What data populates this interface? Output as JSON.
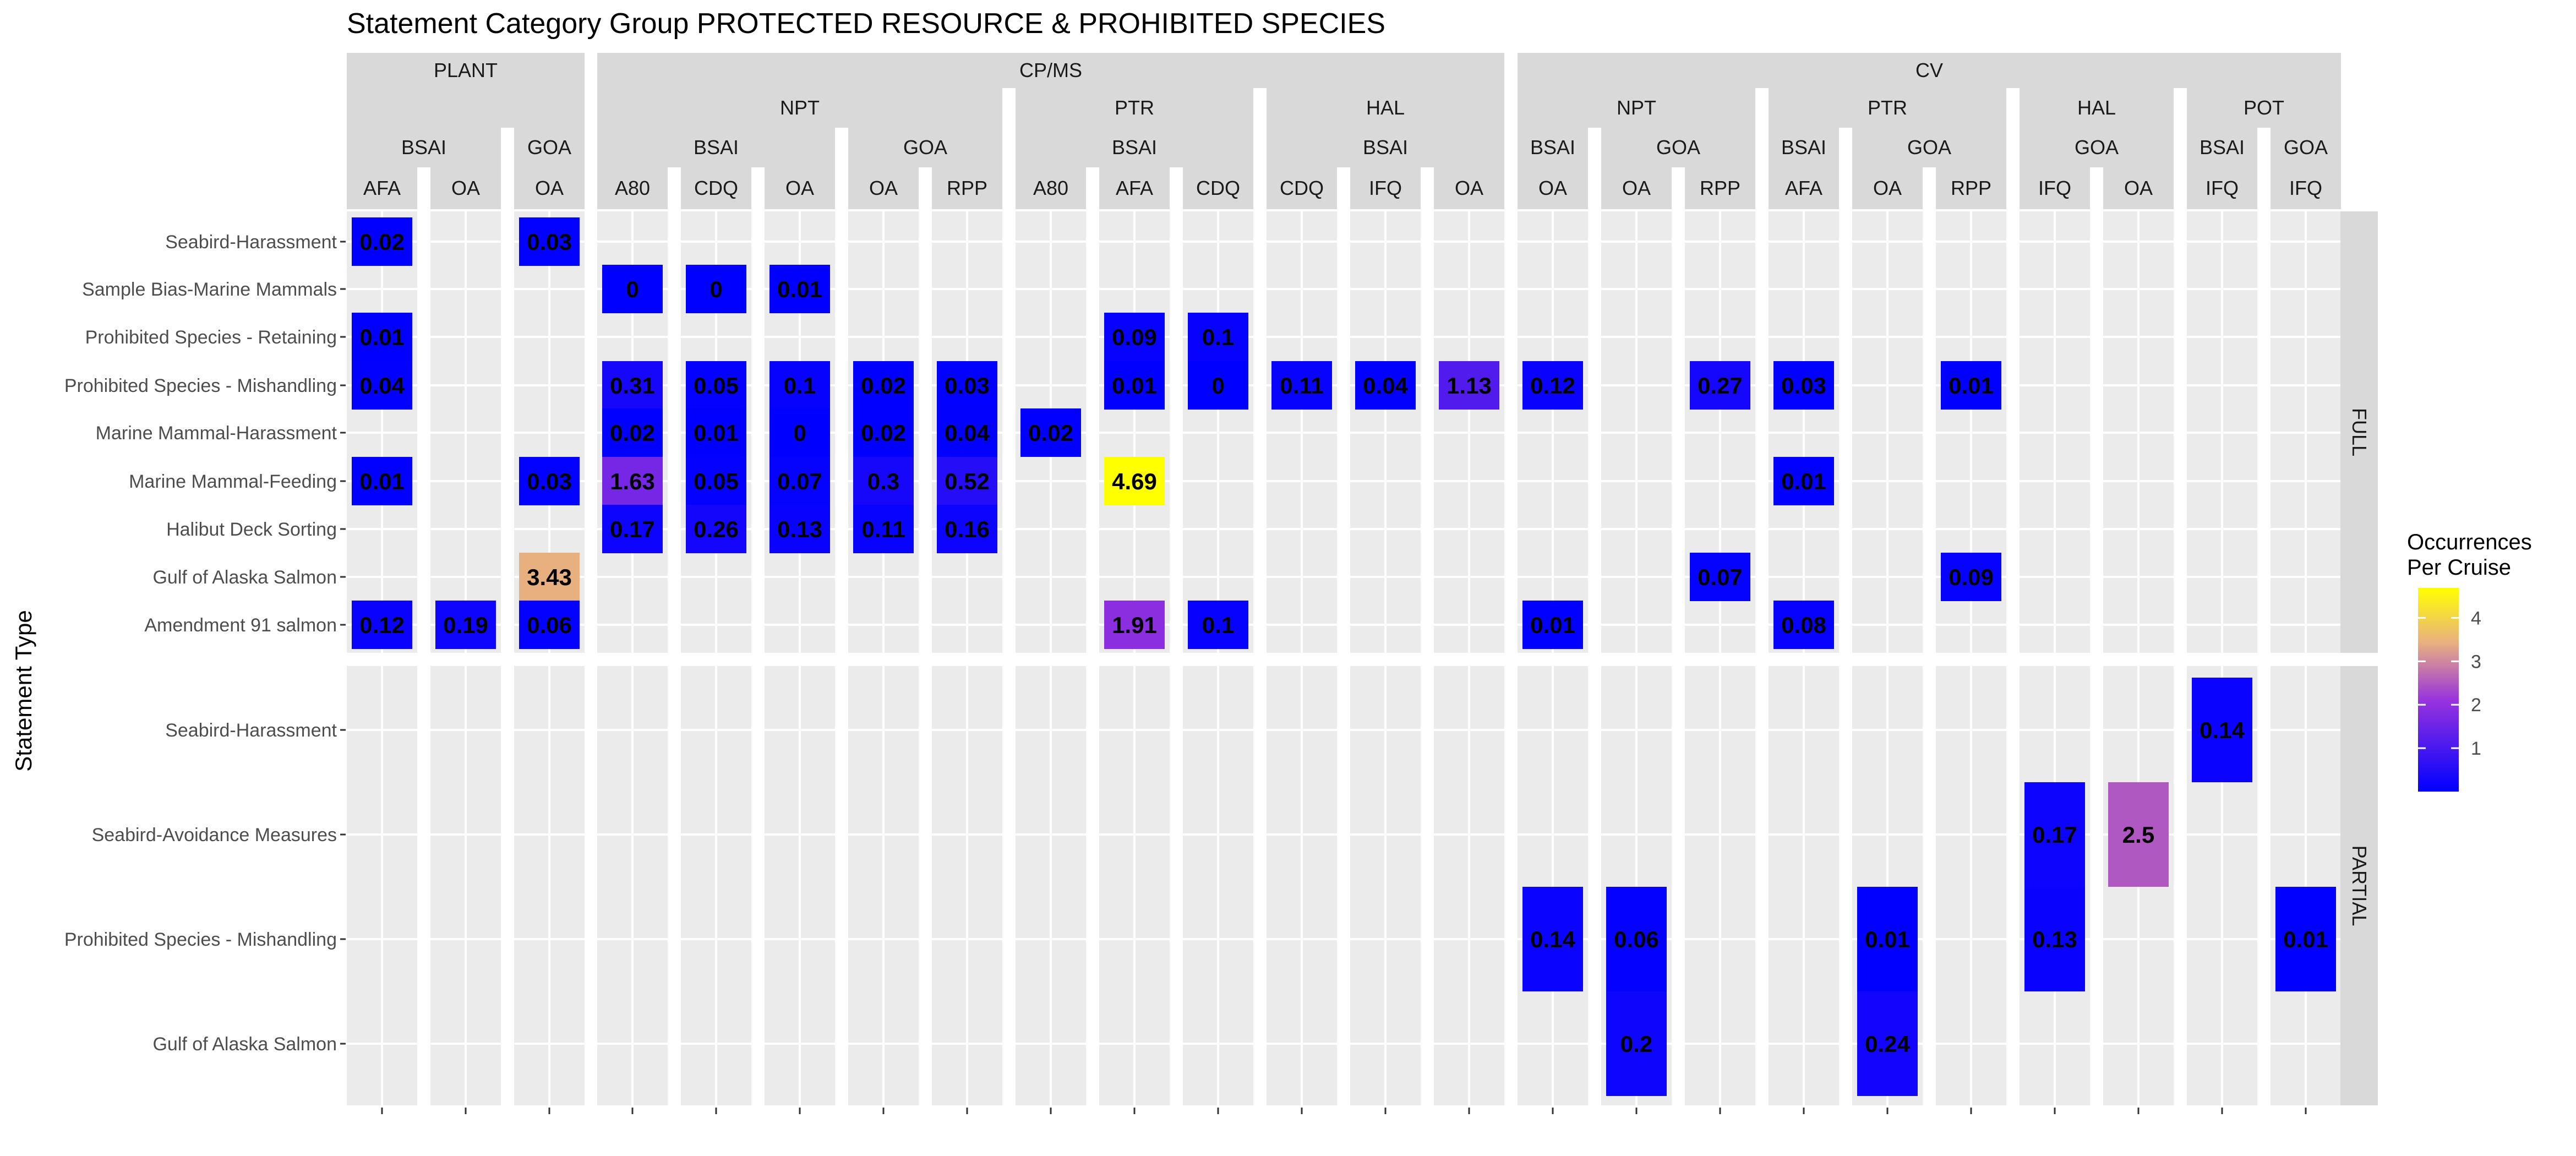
{
  "chart_data": {
    "type": "heatmap",
    "title": "Statement Category Group PROTECTED RESOURCE & PROHIBITED SPECIES",
    "ylabel": "Statement Type",
    "legend": {
      "title_line1": "Occurrences",
      "title_line2": "Per Cruise",
      "ticks": [
        1,
        2,
        3,
        4
      ],
      "range": [
        0,
        4.69
      ],
      "colors": [
        "#0000ff",
        "#9933dd",
        "#e8b080",
        "#ffff00"
      ],
      "placement": "right"
    },
    "columns": [
      {
        "l1": "PLANT",
        "l2": "",
        "l3": "BSAI",
        "l4": "AFA"
      },
      {
        "l1": "PLANT",
        "l2": "",
        "l3": "BSAI",
        "l4": "OA"
      },
      {
        "l1": "PLANT",
        "l2": "",
        "l3": "GOA",
        "l4": "OA"
      },
      {
        "l1": "CP/MS",
        "l2": "NPT",
        "l3": "BSAI",
        "l4": "A80"
      },
      {
        "l1": "CP/MS",
        "l2": "NPT",
        "l3": "BSAI",
        "l4": "CDQ"
      },
      {
        "l1": "CP/MS",
        "l2": "NPT",
        "l3": "BSAI",
        "l4": "OA"
      },
      {
        "l1": "CP/MS",
        "l2": "NPT",
        "l3": "GOA",
        "l4": "OA"
      },
      {
        "l1": "CP/MS",
        "l2": "NPT",
        "l3": "GOA",
        "l4": "RPP"
      },
      {
        "l1": "CP/MS",
        "l2": "PTR",
        "l3": "BSAI",
        "l4": "A80"
      },
      {
        "l1": "CP/MS",
        "l2": "PTR",
        "l3": "BSAI",
        "l4": "AFA"
      },
      {
        "l1": "CP/MS",
        "l2": "PTR",
        "l3": "BSAI",
        "l4": "CDQ"
      },
      {
        "l1": "CP/MS",
        "l2": "HAL",
        "l3": "BSAI",
        "l4": "CDQ"
      },
      {
        "l1": "CP/MS",
        "l2": "HAL",
        "l3": "BSAI",
        "l4": "IFQ"
      },
      {
        "l1": "CP/MS",
        "l2": "HAL",
        "l3": "BSAI",
        "l4": "OA"
      },
      {
        "l1": "CV",
        "l2": "NPT",
        "l3": "BSAI",
        "l4": "OA"
      },
      {
        "l1": "CV",
        "l2": "NPT",
        "l3": "GOA",
        "l4": "OA"
      },
      {
        "l1": "CV",
        "l2": "NPT",
        "l3": "GOA",
        "l4": "RPP"
      },
      {
        "l1": "CV",
        "l2": "PTR",
        "l3": "BSAI",
        "l4": "AFA"
      },
      {
        "l1": "CV",
        "l2": "PTR",
        "l3": "GOA",
        "l4": "OA"
      },
      {
        "l1": "CV",
        "l2": "PTR",
        "l3": "GOA",
        "l4": "RPP"
      },
      {
        "l1": "CV",
        "l2": "HAL",
        "l3": "GOA",
        "l4": "IFQ"
      },
      {
        "l1": "CV",
        "l2": "HAL",
        "l3": "GOA",
        "l4": "OA"
      },
      {
        "l1": "CV",
        "l2": "POT",
        "l3": "BSAI",
        "l4": "IFQ"
      },
      {
        "l1": "CV",
        "l2": "POT",
        "l3": "GOA",
        "l4": "IFQ"
      }
    ],
    "facets": [
      {
        "name": "FULL",
        "rows": [
          "Seabird-Harassment",
          "Sample Bias-Marine Mammals",
          "Prohibited Species - Retaining",
          "Prohibited Species - Mishandling",
          "Marine Mammal-Harassment",
          "Marine Mammal-Feeding",
          "Halibut Deck Sorting",
          "Gulf of Alaska Salmon",
          "Amendment 91 salmon"
        ],
        "cells": [
          {
            "r": 0,
            "c": 0,
            "v": 0.02
          },
          {
            "r": 0,
            "c": 2,
            "v": 0.03
          },
          {
            "r": 1,
            "c": 3,
            "v": 0
          },
          {
            "r": 1,
            "c": 4,
            "v": 0
          },
          {
            "r": 1,
            "c": 5,
            "v": 0.01
          },
          {
            "r": 2,
            "c": 0,
            "v": 0.01
          },
          {
            "r": 2,
            "c": 9,
            "v": 0.09
          },
          {
            "r": 2,
            "c": 10,
            "v": 0.1
          },
          {
            "r": 3,
            "c": 0,
            "v": 0.04
          },
          {
            "r": 3,
            "c": 3,
            "v": 0.31
          },
          {
            "r": 3,
            "c": 4,
            "v": 0.05
          },
          {
            "r": 3,
            "c": 5,
            "v": 0.1
          },
          {
            "r": 3,
            "c": 6,
            "v": 0.02
          },
          {
            "r": 3,
            "c": 7,
            "v": 0.03
          },
          {
            "r": 3,
            "c": 9,
            "v": 0.01
          },
          {
            "r": 3,
            "c": 10,
            "v": 0
          },
          {
            "r": 3,
            "c": 11,
            "v": 0.11
          },
          {
            "r": 3,
            "c": 12,
            "v": 0.04
          },
          {
            "r": 3,
            "c": 13,
            "v": 1.13
          },
          {
            "r": 3,
            "c": 14,
            "v": 0.12
          },
          {
            "r": 3,
            "c": 16,
            "v": 0.27
          },
          {
            "r": 3,
            "c": 17,
            "v": 0.03
          },
          {
            "r": 3,
            "c": 19,
            "v": 0.01
          },
          {
            "r": 4,
            "c": 3,
            "v": 0.02
          },
          {
            "r": 4,
            "c": 4,
            "v": 0.01
          },
          {
            "r": 4,
            "c": 5,
            "v": 0
          },
          {
            "r": 4,
            "c": 6,
            "v": 0.02
          },
          {
            "r": 4,
            "c": 7,
            "v": 0.04
          },
          {
            "r": 4,
            "c": 8,
            "v": 0.02
          },
          {
            "r": 5,
            "c": 0,
            "v": 0.01
          },
          {
            "r": 5,
            "c": 2,
            "v": 0.03
          },
          {
            "r": 5,
            "c": 3,
            "v": 1.63
          },
          {
            "r": 5,
            "c": 4,
            "v": 0.05
          },
          {
            "r": 5,
            "c": 5,
            "v": 0.07
          },
          {
            "r": 5,
            "c": 6,
            "v": 0.3
          },
          {
            "r": 5,
            "c": 7,
            "v": 0.52
          },
          {
            "r": 5,
            "c": 9,
            "v": 4.69
          },
          {
            "r": 5,
            "c": 17,
            "v": 0.01
          },
          {
            "r": 6,
            "c": 3,
            "v": 0.17
          },
          {
            "r": 6,
            "c": 4,
            "v": 0.26
          },
          {
            "r": 6,
            "c": 5,
            "v": 0.13
          },
          {
            "r": 6,
            "c": 6,
            "v": 0.11
          },
          {
            "r": 6,
            "c": 7,
            "v": 0.16
          },
          {
            "r": 7,
            "c": 2,
            "v": 3.43
          },
          {
            "r": 7,
            "c": 16,
            "v": 0.07
          },
          {
            "r": 7,
            "c": 19,
            "v": 0.09
          },
          {
            "r": 8,
            "c": 0,
            "v": 0.12
          },
          {
            "r": 8,
            "c": 1,
            "v": 0.19
          },
          {
            "r": 8,
            "c": 2,
            "v": 0.06
          },
          {
            "r": 8,
            "c": 9,
            "v": 1.91
          },
          {
            "r": 8,
            "c": 10,
            "v": 0.1
          },
          {
            "r": 8,
            "c": 14,
            "v": 0.01
          },
          {
            "r": 8,
            "c": 17,
            "v": 0.08
          }
        ]
      },
      {
        "name": "PARTIAL",
        "rows": [
          "Seabird-Harassment",
          "Seabird-Avoidance Measures",
          "Prohibited Species - Mishandling",
          "Gulf of Alaska Salmon"
        ],
        "cells": [
          {
            "r": 0,
            "c": 22,
            "v": 0.14
          },
          {
            "r": 1,
            "c": 20,
            "v": 0.17
          },
          {
            "r": 1,
            "c": 21,
            "v": 2.5
          },
          {
            "r": 2,
            "c": 14,
            "v": 0.14
          },
          {
            "r": 2,
            "c": 15,
            "v": 0.06
          },
          {
            "r": 2,
            "c": 18,
            "v": 0.01
          },
          {
            "r": 2,
            "c": 20,
            "v": 0.13
          },
          {
            "r": 2,
            "c": 23,
            "v": 0.01
          },
          {
            "r": 3,
            "c": 15,
            "v": 0.2
          },
          {
            "r": 3,
            "c": 18,
            "v": 0.24
          }
        ]
      }
    ]
  }
}
